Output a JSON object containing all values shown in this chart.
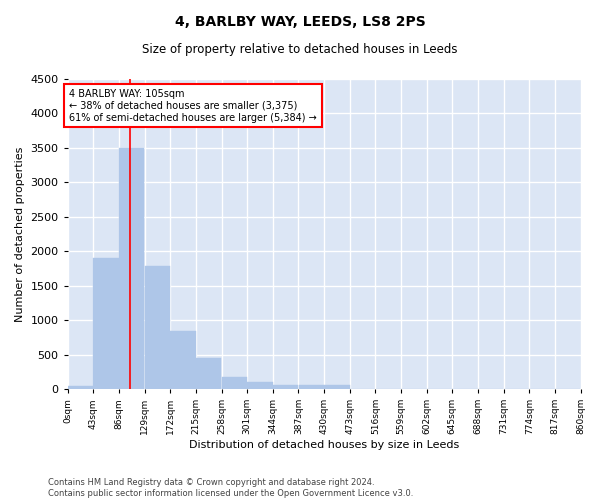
{
  "title1": "4, BARLBY WAY, LEEDS, LS8 2PS",
  "title2": "Size of property relative to detached houses in Leeds",
  "xlabel": "Distribution of detached houses by size in Leeds",
  "ylabel": "Number of detached properties",
  "bar_color": "#aec6e8",
  "bar_edgecolor": "#aec6e8",
  "bg_color": "#dce6f5",
  "grid_color": "white",
  "bins": [
    0,
    43,
    86,
    129,
    172,
    215,
    258,
    301,
    344,
    387,
    430,
    473,
    516,
    559,
    602,
    645,
    688,
    731,
    774,
    817,
    860
  ],
  "bin_labels": [
    "0sqm",
    "43sqm",
    "86sqm",
    "129sqm",
    "172sqm",
    "215sqm",
    "258sqm",
    "301sqm",
    "344sqm",
    "387sqm",
    "430sqm",
    "473sqm",
    "516sqm",
    "559sqm",
    "602sqm",
    "645sqm",
    "688sqm",
    "731sqm",
    "774sqm",
    "817sqm",
    "860sqm"
  ],
  "values": [
    50,
    1900,
    3500,
    1780,
    840,
    450,
    175,
    100,
    65,
    55,
    55,
    0,
    0,
    0,
    0,
    0,
    0,
    0,
    0,
    0
  ],
  "ylim": [
    0,
    4500
  ],
  "yticks": [
    0,
    500,
    1000,
    1500,
    2000,
    2500,
    3000,
    3500,
    4000,
    4500
  ],
  "red_line_x": 105,
  "annotation_title": "4 BARLBY WAY: 105sqm",
  "annotation_line1": "← 38% of detached houses are smaller (3,375)",
  "annotation_line2": "61% of semi-detached houses are larger (5,384) →",
  "annotation_box_color": "white",
  "annotation_border_color": "red",
  "footer1": "Contains HM Land Registry data © Crown copyright and database right 2024.",
  "footer2": "Contains public sector information licensed under the Open Government Licence v3.0."
}
